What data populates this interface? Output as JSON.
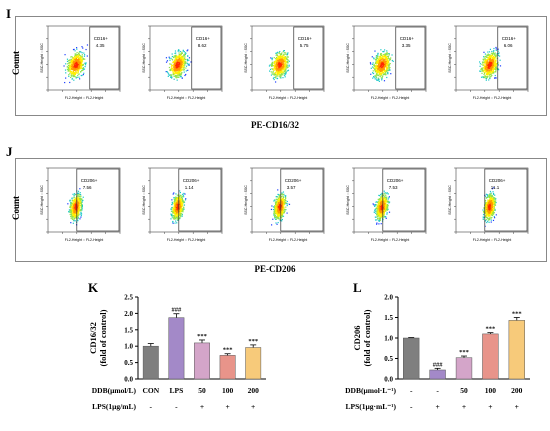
{
  "panels": {
    "I": {
      "letter": "I",
      "y_title": "Count",
      "x_title": "PE-CD16/32",
      "plots": [
        {
          "gate_label": "CD16+",
          "gate_value": "4.35"
        },
        {
          "gate_label": "CD16+",
          "gate_value": "8.62"
        },
        {
          "gate_label": "CD16+",
          "gate_value": "5.75"
        },
        {
          "gate_label": "CD16+",
          "gate_value": "3.35"
        },
        {
          "gate_label": "CD16+",
          "gate_value": "6.06"
        }
      ]
    },
    "J": {
      "letter": "J",
      "y_title": "Count",
      "x_title": "PE-CD206",
      "plots": [
        {
          "gate_label": "CD206+",
          "gate_value": "7.56"
        },
        {
          "gate_label": "CD206+",
          "gate_value": "1.14"
        },
        {
          "gate_label": "CD206+",
          "gate_value": "3.57"
        },
        {
          "gate_label": "CD206+",
          "gate_value": "7.53"
        },
        {
          "gate_label": "CD206+",
          "gate_value": "11.1"
        }
      ]
    },
    "fcs_axis_text": {
      "ylabel": "SSC-Height :: SSC",
      "xlabel": "FL2-Height :: FL2-Height"
    }
  },
  "chart_data": [
    {
      "panel": "K",
      "type": "bar",
      "ylabel": "CD16/32\n(fold of control)",
      "ylim": [
        0,
        2.5
      ],
      "yticks": [
        "0.0",
        "0.5",
        "1.0",
        "1.5",
        "2.0",
        "2.5"
      ],
      "categories": [
        "CON",
        "LPS",
        "50",
        "100",
        "200"
      ],
      "values": [
        1.0,
        1.87,
        1.1,
        0.72,
        0.96
      ],
      "errors": [
        0.08,
        0.12,
        0.09,
        0.05,
        0.08
      ],
      "colors": [
        "#7f7f7f",
        "#a389c8",
        "#d4a5c9",
        "#e8948a",
        "#f7ca7a"
      ],
      "significance": [
        "",
        "###",
        "***",
        "***",
        "***"
      ],
      "table": {
        "row1_label": "DDB(μmol/L)",
        "row1_values": [
          "CON",
          "LPS",
          "50",
          "100",
          "200"
        ],
        "row2_label": "LPS(1μg/mL)",
        "row2_values": [
          "-",
          "-",
          "+",
          "+",
          "+"
        ]
      }
    },
    {
      "panel": "L",
      "type": "bar",
      "ylabel": "CD206\n(fold of control)",
      "ylim": [
        0,
        2.0
      ],
      "yticks": [
        "0.0",
        "0.5",
        "1.0",
        "1.5",
        "2.0"
      ],
      "categories": [
        "-",
        "-",
        "50",
        "100",
        "200"
      ],
      "values": [
        1.0,
        0.22,
        0.52,
        1.1,
        1.43
      ],
      "errors": [
        0.01,
        0.04,
        0.04,
        0.03,
        0.07
      ],
      "colors": [
        "#7f7f7f",
        "#a389c8",
        "#d4a5c9",
        "#e8948a",
        "#f7ca7a"
      ],
      "significance": [
        "",
        "###",
        "***",
        "***",
        "***"
      ],
      "table": {
        "row1_label": "DDB(μmol·L⁻¹)",
        "row1_values": [
          "-",
          "-",
          "50",
          "100",
          "200"
        ],
        "row2_label": "LPS(1μg·mL⁻¹)",
        "row2_values": [
          "-",
          "+",
          "+",
          "+",
          "+"
        ]
      }
    }
  ]
}
